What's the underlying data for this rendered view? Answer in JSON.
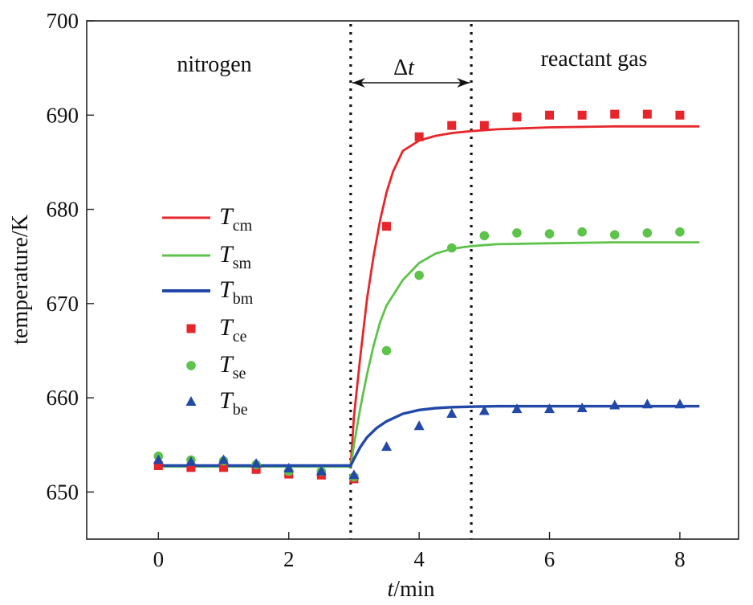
{
  "chart_data": {
    "type": "line",
    "xlabel_var": "t",
    "xlabel_unit": "/min",
    "ylabel": "temperature/K",
    "xlim": [
      -1.1,
      8.9
    ],
    "ylim": [
      645,
      700
    ],
    "xticks": [
      0,
      2,
      4,
      6,
      8
    ],
    "yticks": [
      650,
      660,
      670,
      680,
      690,
      700
    ],
    "grid": false,
    "legend_position": "left",
    "annotations": {
      "left_region": "nitrogen",
      "right_region": "reactant gas",
      "delta_symbol": "Δ",
      "delta_var": "t",
      "vlines": [
        2.95,
        4.8
      ]
    },
    "colors": {
      "red": "#e8252a",
      "green": "#5ec34a",
      "blue": "#2248a8"
    },
    "series": [
      {
        "name": "T",
        "sub": "cm",
        "kind": "line",
        "color": "#e8252a",
        "x": [
          0,
          0.5,
          1,
          1.5,
          2,
          2.5,
          2.95,
          3.0,
          3.1,
          3.2,
          3.3,
          3.4,
          3.5,
          3.6,
          3.75,
          4.0,
          4.25,
          4.5,
          4.8,
          5.2,
          6.0,
          7.0,
          8.3
        ],
        "y": [
          652.8,
          652.8,
          652.8,
          652.8,
          652.8,
          652.8,
          652.8,
          658.0,
          664.5,
          670.5,
          675.0,
          678.8,
          681.8,
          684.0,
          686.2,
          687.3,
          687.8,
          688.1,
          688.3,
          688.5,
          688.7,
          688.8,
          688.8
        ]
      },
      {
        "name": "T",
        "sub": "sm",
        "kind": "line",
        "color": "#5ec34a",
        "x": [
          0,
          0.5,
          1,
          1.5,
          2,
          2.5,
          2.95,
          3.0,
          3.1,
          3.2,
          3.3,
          3.4,
          3.5,
          3.75,
          4.0,
          4.25,
          4.5,
          4.8,
          5.2,
          6.0,
          7.0,
          8.3
        ],
        "y": [
          652.7,
          652.7,
          652.7,
          652.7,
          652.7,
          652.7,
          652.7,
          655.0,
          659.0,
          662.5,
          665.5,
          668.0,
          669.8,
          672.5,
          674.3,
          675.3,
          675.8,
          676.1,
          676.3,
          676.4,
          676.5,
          676.5
        ]
      },
      {
        "name": "T",
        "sub": "bm",
        "kind": "line",
        "color": "#2248a8",
        "x": [
          0,
          0.5,
          1,
          1.5,
          2,
          2.5,
          2.95,
          3.0,
          3.1,
          3.2,
          3.35,
          3.5,
          3.75,
          4.0,
          4.25,
          4.5,
          4.8,
          5.2,
          6.0,
          7.0,
          8.3
        ],
        "y": [
          652.8,
          652.8,
          652.8,
          652.8,
          652.8,
          652.8,
          652.8,
          653.5,
          654.8,
          655.8,
          656.8,
          657.5,
          658.3,
          658.7,
          658.9,
          659.0,
          659.05,
          659.1,
          659.1,
          659.1,
          659.1
        ]
      },
      {
        "name": "T",
        "sub": "ce",
        "kind": "square",
        "color": "#e8252a",
        "x": [
          0,
          0.5,
          1,
          1.5,
          2,
          2.5,
          3.0,
          3.5,
          4.0,
          4.5,
          5.0,
          5.5,
          6.0,
          6.5,
          7.0,
          7.5,
          8.0
        ],
        "y": [
          652.8,
          652.6,
          652.6,
          652.4,
          651.9,
          651.8,
          651.4,
          678.2,
          687.7,
          688.9,
          688.9,
          689.8,
          690.0,
          690.0,
          690.1,
          690.1,
          690.0
        ]
      },
      {
        "name": "T",
        "sub": "se",
        "kind": "circle",
        "color": "#5ec34a",
        "x": [
          0,
          0.5,
          1,
          1.5,
          2,
          2.5,
          3.0,
          3.5,
          4.0,
          4.5,
          5.0,
          5.5,
          6.0,
          6.5,
          7.0,
          7.5,
          8.0
        ],
        "y": [
          653.8,
          653.4,
          653.3,
          652.9,
          652.2,
          652.2,
          651.6,
          665.0,
          673.0,
          675.9,
          677.2,
          677.5,
          677.4,
          677.6,
          677.3,
          677.5,
          677.6
        ]
      },
      {
        "name": "T",
        "sub": "be",
        "kind": "triangle",
        "color": "#2248a8",
        "x": [
          0,
          0.5,
          1,
          1.5,
          2,
          2.5,
          3.0,
          3.5,
          4.0,
          4.5,
          5.0,
          5.5,
          6.0,
          6.5,
          7.0,
          7.5,
          8.0
        ],
        "y": [
          653.4,
          653.2,
          653.4,
          653.0,
          652.5,
          652.2,
          651.8,
          654.8,
          657.0,
          658.3,
          658.6,
          658.8,
          658.8,
          658.9,
          659.2,
          659.3,
          659.3
        ]
      }
    ]
  }
}
